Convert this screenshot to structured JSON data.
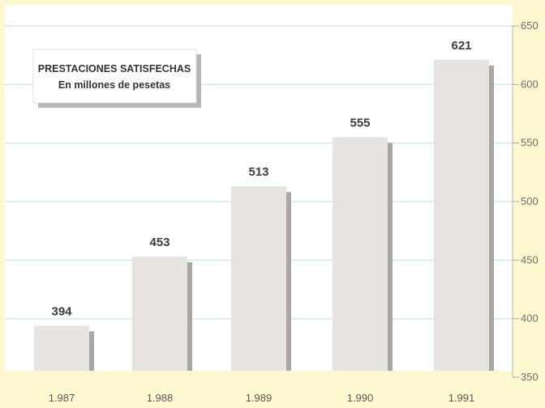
{
  "chart_data": {
    "type": "bar",
    "title": "PRESTACIONES SATISFECHAS",
    "subtitle": "En millones de pesetas",
    "xlabel": "",
    "ylabel": "",
    "categories": [
      "1.987",
      "1.988",
      "1.989",
      "1.990",
      "1.991"
    ],
    "values": [
      394,
      453,
      513,
      555,
      621
    ],
    "value_labels": [
      "394",
      "453",
      "513",
      "555",
      "621"
    ],
    "ylim": [
      350,
      650
    ],
    "yticks": [
      350,
      400,
      450,
      500,
      550,
      600,
      650
    ],
    "ytick_labels": [
      "350",
      "400",
      "450",
      "500",
      "550",
      "600",
      "650"
    ],
    "y_axis_position": "right",
    "grid": true,
    "legend": "none",
    "colors": {
      "background": "#fdf8cf",
      "plot_background": "#ffffff",
      "bar": "#e6e3e1",
      "bar_shadow": "#a9a6a4",
      "gridline": "#c9e3e4"
    }
  }
}
